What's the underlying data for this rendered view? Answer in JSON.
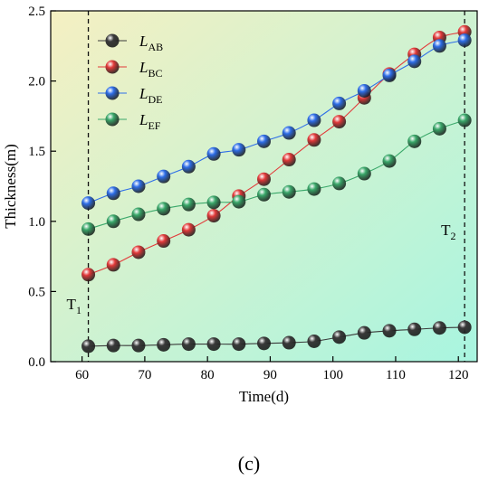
{
  "chart_data": {
    "type": "line",
    "xlabel": "Time(d)",
    "ylabel": "Thickness(m)",
    "xlim": [
      55,
      123
    ],
    "ylim": [
      0,
      2.5
    ],
    "xticks": [
      60,
      70,
      80,
      90,
      100,
      110,
      120
    ],
    "yticks": [
      0.0,
      0.5,
      1.0,
      1.5,
      2.0,
      2.5
    ],
    "x": [
      61,
      65,
      69,
      73,
      77,
      81,
      85,
      89,
      93,
      97,
      101,
      105,
      109,
      113,
      117,
      121
    ],
    "legend_position": "top-left",
    "background_gradient": [
      "#f5f0c2",
      "#a8f5e0"
    ],
    "series": [
      {
        "name": "L",
        "sub": "AB",
        "color": "#3a3a3a",
        "values": [
          0.11,
          0.115,
          0.115,
          0.12,
          0.125,
          0.125,
          0.125,
          0.13,
          0.135,
          0.145,
          0.175,
          0.205,
          0.22,
          0.23,
          0.24,
          0.245
        ]
      },
      {
        "name": "L",
        "sub": "BC",
        "color": "#e23a3a",
        "values": [
          0.62,
          0.69,
          0.78,
          0.86,
          0.94,
          1.04,
          1.18,
          1.3,
          1.44,
          1.58,
          1.71,
          1.88,
          2.05,
          2.19,
          2.31,
          2.35
        ]
      },
      {
        "name": "L",
        "sub": "DE",
        "color": "#2e6ee8",
        "values": [
          1.13,
          1.2,
          1.25,
          1.32,
          1.39,
          1.48,
          1.51,
          1.57,
          1.63,
          1.72,
          1.84,
          1.93,
          2.04,
          2.14,
          2.25,
          2.29
        ]
      },
      {
        "name": "L",
        "sub": "EF",
        "color": "#3aa86a",
        "values": [
          0.945,
          1.0,
          1.05,
          1.09,
          1.12,
          1.135,
          1.14,
          1.19,
          1.21,
          1.23,
          1.27,
          1.34,
          1.43,
          1.57,
          1.66,
          1.72
        ]
      }
    ],
    "vlines": [
      {
        "x": 61,
        "label": "T",
        "sub": "1"
      },
      {
        "x": 121,
        "label": "T",
        "sub": "2"
      }
    ],
    "panel_label": "(c)"
  }
}
